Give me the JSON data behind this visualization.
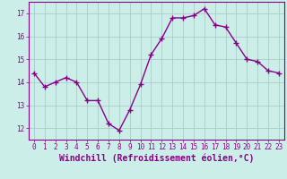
{
  "x": [
    0,
    1,
    2,
    3,
    4,
    5,
    6,
    7,
    8,
    9,
    10,
    11,
    12,
    13,
    14,
    15,
    16,
    17,
    18,
    19,
    20,
    21,
    22,
    23
  ],
  "y": [
    14.4,
    13.8,
    14.0,
    14.2,
    14.0,
    13.2,
    13.2,
    12.2,
    11.9,
    12.8,
    13.9,
    15.2,
    15.9,
    16.8,
    16.8,
    16.9,
    17.2,
    16.5,
    16.4,
    15.7,
    15.0,
    14.9,
    14.5,
    14.4
  ],
  "line_color": "#880088",
  "marker": "+",
  "marker_size": 4,
  "background_color": "#cceee8",
  "grid_color": "#aacccc",
  "xlabel": "Windchill (Refroidissement éolien,°C)",
  "ylim": [
    11.5,
    17.5
  ],
  "xlim": [
    -0.5,
    23.5
  ],
  "yticks": [
    12,
    13,
    14,
    15,
    16,
    17
  ],
  "xticks": [
    0,
    1,
    2,
    3,
    4,
    5,
    6,
    7,
    8,
    9,
    10,
    11,
    12,
    13,
    14,
    15,
    16,
    17,
    18,
    19,
    20,
    21,
    22,
    23
  ],
  "tick_color": "#880088",
  "label_color": "#880088",
  "tick_fontsize": 5.5,
  "xlabel_fontsize": 7.0,
  "axis_color": "#880088",
  "linewidth": 1.0,
  "markeredgewidth": 1.0
}
